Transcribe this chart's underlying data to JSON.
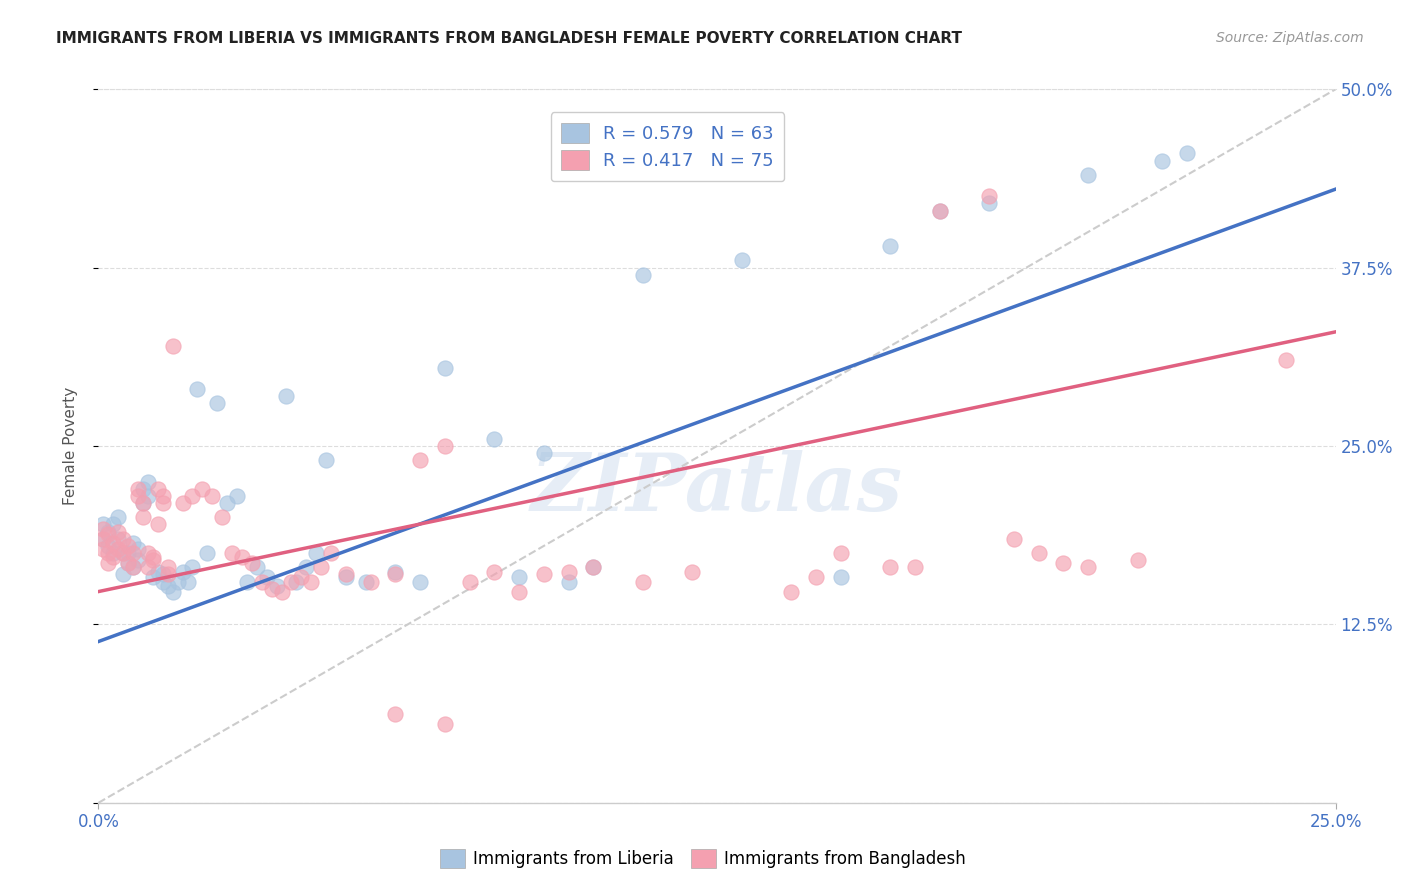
{
  "title": "IMMIGRANTS FROM LIBERIA VS IMMIGRANTS FROM BANGLADESH FEMALE POVERTY CORRELATION CHART",
  "source": "Source: ZipAtlas.com",
  "ylabel": "Female Poverty",
  "x_min": 0.0,
  "x_max": 0.25,
  "y_min": 0.0,
  "y_max": 0.5,
  "x_ticks": [
    0.0,
    0.25
  ],
  "x_tick_labels": [
    "0.0%",
    "25.0%"
  ],
  "y_ticks": [
    0.0,
    0.125,
    0.25,
    0.375,
    0.5
  ],
  "y_tick_labels_right": [
    "",
    "12.5%",
    "25.0%",
    "37.5%",
    "50.0%"
  ],
  "liberia_color": "#a8c4e0",
  "bangladesh_color": "#f4a0b0",
  "liberia_R": 0.579,
  "liberia_N": 63,
  "bangladesh_R": 0.417,
  "bangladesh_N": 75,
  "legend_text_color": "#4472c4",
  "watermark": "ZIPatlas",
  "liberia_scatter": [
    [
      0.001,
      0.195
    ],
    [
      0.001,
      0.185
    ],
    [
      0.002,
      0.19
    ],
    [
      0.002,
      0.18
    ],
    [
      0.003,
      0.175
    ],
    [
      0.003,
      0.195
    ],
    [
      0.004,
      0.185
    ],
    [
      0.004,
      0.2
    ],
    [
      0.005,
      0.175
    ],
    [
      0.005,
      0.16
    ],
    [
      0.006,
      0.168
    ],
    [
      0.006,
      0.175
    ],
    [
      0.007,
      0.165
    ],
    [
      0.007,
      0.182
    ],
    [
      0.008,
      0.17
    ],
    [
      0.008,
      0.178
    ],
    [
      0.009,
      0.21
    ],
    [
      0.009,
      0.22
    ],
    [
      0.01,
      0.215
    ],
    [
      0.01,
      0.225
    ],
    [
      0.011,
      0.158
    ],
    [
      0.012,
      0.162
    ],
    [
      0.013,
      0.16
    ],
    [
      0.013,
      0.155
    ],
    [
      0.014,
      0.152
    ],
    [
      0.015,
      0.148
    ],
    [
      0.016,
      0.155
    ],
    [
      0.017,
      0.162
    ],
    [
      0.018,
      0.155
    ],
    [
      0.019,
      0.165
    ],
    [
      0.02,
      0.29
    ],
    [
      0.022,
      0.175
    ],
    [
      0.024,
      0.28
    ],
    [
      0.026,
      0.21
    ],
    [
      0.028,
      0.215
    ],
    [
      0.03,
      0.155
    ],
    [
      0.032,
      0.165
    ],
    [
      0.034,
      0.158
    ],
    [
      0.036,
      0.152
    ],
    [
      0.038,
      0.285
    ],
    [
      0.04,
      0.155
    ],
    [
      0.042,
      0.165
    ],
    [
      0.044,
      0.175
    ],
    [
      0.046,
      0.24
    ],
    [
      0.05,
      0.158
    ],
    [
      0.054,
      0.155
    ],
    [
      0.06,
      0.162
    ],
    [
      0.065,
      0.155
    ],
    [
      0.07,
      0.305
    ],
    [
      0.08,
      0.255
    ],
    [
      0.085,
      0.158
    ],
    [
      0.09,
      0.245
    ],
    [
      0.095,
      0.155
    ],
    [
      0.1,
      0.165
    ],
    [
      0.11,
      0.37
    ],
    [
      0.13,
      0.38
    ],
    [
      0.15,
      0.158
    ],
    [
      0.16,
      0.39
    ],
    [
      0.17,
      0.415
    ],
    [
      0.18,
      0.42
    ],
    [
      0.2,
      0.44
    ],
    [
      0.215,
      0.45
    ],
    [
      0.22,
      0.455
    ]
  ],
  "bangladesh_scatter": [
    [
      0.001,
      0.192
    ],
    [
      0.001,
      0.185
    ],
    [
      0.001,
      0.178
    ],
    [
      0.002,
      0.188
    ],
    [
      0.002,
      0.175
    ],
    [
      0.002,
      0.168
    ],
    [
      0.003,
      0.182
    ],
    [
      0.003,
      0.172
    ],
    [
      0.004,
      0.19
    ],
    [
      0.004,
      0.178
    ],
    [
      0.005,
      0.185
    ],
    [
      0.005,
      0.175
    ],
    [
      0.006,
      0.18
    ],
    [
      0.006,
      0.168
    ],
    [
      0.007,
      0.175
    ],
    [
      0.007,
      0.165
    ],
    [
      0.008,
      0.22
    ],
    [
      0.008,
      0.215
    ],
    [
      0.009,
      0.21
    ],
    [
      0.009,
      0.2
    ],
    [
      0.01,
      0.175
    ],
    [
      0.01,
      0.165
    ],
    [
      0.011,
      0.17
    ],
    [
      0.011,
      0.172
    ],
    [
      0.012,
      0.195
    ],
    [
      0.012,
      0.22
    ],
    [
      0.013,
      0.215
    ],
    [
      0.013,
      0.21
    ],
    [
      0.014,
      0.16
    ],
    [
      0.014,
      0.165
    ],
    [
      0.015,
      0.32
    ],
    [
      0.017,
      0.21
    ],
    [
      0.019,
      0.215
    ],
    [
      0.021,
      0.22
    ],
    [
      0.023,
      0.215
    ],
    [
      0.025,
      0.2
    ],
    [
      0.027,
      0.175
    ],
    [
      0.029,
      0.172
    ],
    [
      0.031,
      0.168
    ],
    [
      0.033,
      0.155
    ],
    [
      0.035,
      0.15
    ],
    [
      0.037,
      0.148
    ],
    [
      0.039,
      0.155
    ],
    [
      0.041,
      0.158
    ],
    [
      0.043,
      0.155
    ],
    [
      0.045,
      0.165
    ],
    [
      0.047,
      0.175
    ],
    [
      0.05,
      0.16
    ],
    [
      0.055,
      0.155
    ],
    [
      0.06,
      0.16
    ],
    [
      0.065,
      0.24
    ],
    [
      0.07,
      0.25
    ],
    [
      0.075,
      0.155
    ],
    [
      0.08,
      0.162
    ],
    [
      0.085,
      0.148
    ],
    [
      0.09,
      0.16
    ],
    [
      0.095,
      0.162
    ],
    [
      0.1,
      0.165
    ],
    [
      0.11,
      0.155
    ],
    [
      0.12,
      0.162
    ],
    [
      0.14,
      0.148
    ],
    [
      0.145,
      0.158
    ],
    [
      0.15,
      0.175
    ],
    [
      0.16,
      0.165
    ],
    [
      0.165,
      0.165
    ],
    [
      0.17,
      0.415
    ],
    [
      0.18,
      0.425
    ],
    [
      0.185,
      0.185
    ],
    [
      0.19,
      0.175
    ],
    [
      0.195,
      0.168
    ],
    [
      0.2,
      0.165
    ],
    [
      0.21,
      0.17
    ],
    [
      0.24,
      0.31
    ],
    [
      0.07,
      0.055
    ],
    [
      0.06,
      0.062
    ]
  ],
  "dashed_line_color": "#cccccc",
  "regression_line_color_liberia": "#4472c4",
  "regression_line_color_bangladesh": "#e06080",
  "liberia_reg": [
    0.0,
    0.113,
    0.25,
    0.43
  ],
  "bangladesh_reg": [
    0.0,
    0.148,
    0.25,
    0.33
  ]
}
